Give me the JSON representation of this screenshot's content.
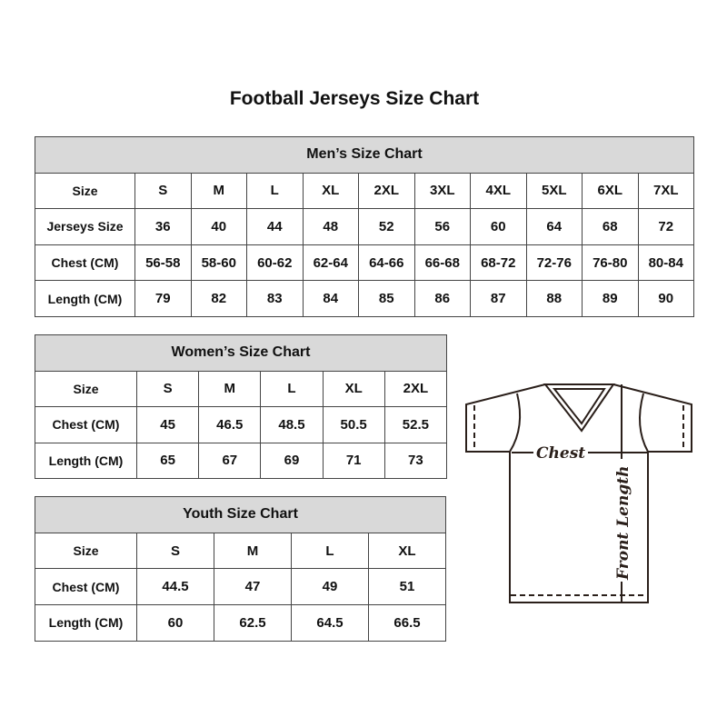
{
  "title": "Football Jerseys Size Chart",
  "men": {
    "title": "Men’s Size Chart",
    "rows": [
      {
        "label": "Size",
        "values": [
          "S",
          "M",
          "L",
          "XL",
          "2XL",
          "3XL",
          "4XL",
          "5XL",
          "6XL",
          "7XL"
        ]
      },
      {
        "label": "Jerseys Size",
        "values": [
          "36",
          "40",
          "44",
          "48",
          "52",
          "56",
          "60",
          "64",
          "68",
          "72"
        ]
      },
      {
        "label": "Chest (CM)",
        "values": [
          "56-58",
          "58-60",
          "60-62",
          "62-64",
          "64-66",
          "66-68",
          "68-72",
          "72-76",
          "76-80",
          "80-84"
        ]
      },
      {
        "label": "Length (CM)",
        "values": [
          "79",
          "82",
          "83",
          "84",
          "85",
          "86",
          "87",
          "88",
          "89",
          "90"
        ]
      }
    ]
  },
  "women": {
    "title": "Women’s Size Chart",
    "rows": [
      {
        "label": "Size",
        "values": [
          "S",
          "M",
          "L",
          "XL",
          "2XL"
        ]
      },
      {
        "label": "Chest (CM)",
        "values": [
          "45",
          "46.5",
          "48.5",
          "50.5",
          "52.5"
        ]
      },
      {
        "label": "Length (CM)",
        "values": [
          "65",
          "67",
          "69",
          "71",
          "73"
        ]
      }
    ]
  },
  "youth": {
    "title": "Youth Size Chart",
    "rows": [
      {
        "label": "Size",
        "values": [
          "S",
          "M",
          "L",
          "XL"
        ]
      },
      {
        "label": "Chest (CM)",
        "values": [
          "44.5",
          "47",
          "49",
          "51"
        ]
      },
      {
        "label": "Length (CM)",
        "values": [
          "60",
          "62.5",
          "64.5",
          "66.5"
        ]
      }
    ]
  },
  "diagram": {
    "chest_label": "Chest",
    "length_label": "Front Length"
  },
  "colors": {
    "header_bg": "#d9d9d9",
    "border": "#444444"
  }
}
